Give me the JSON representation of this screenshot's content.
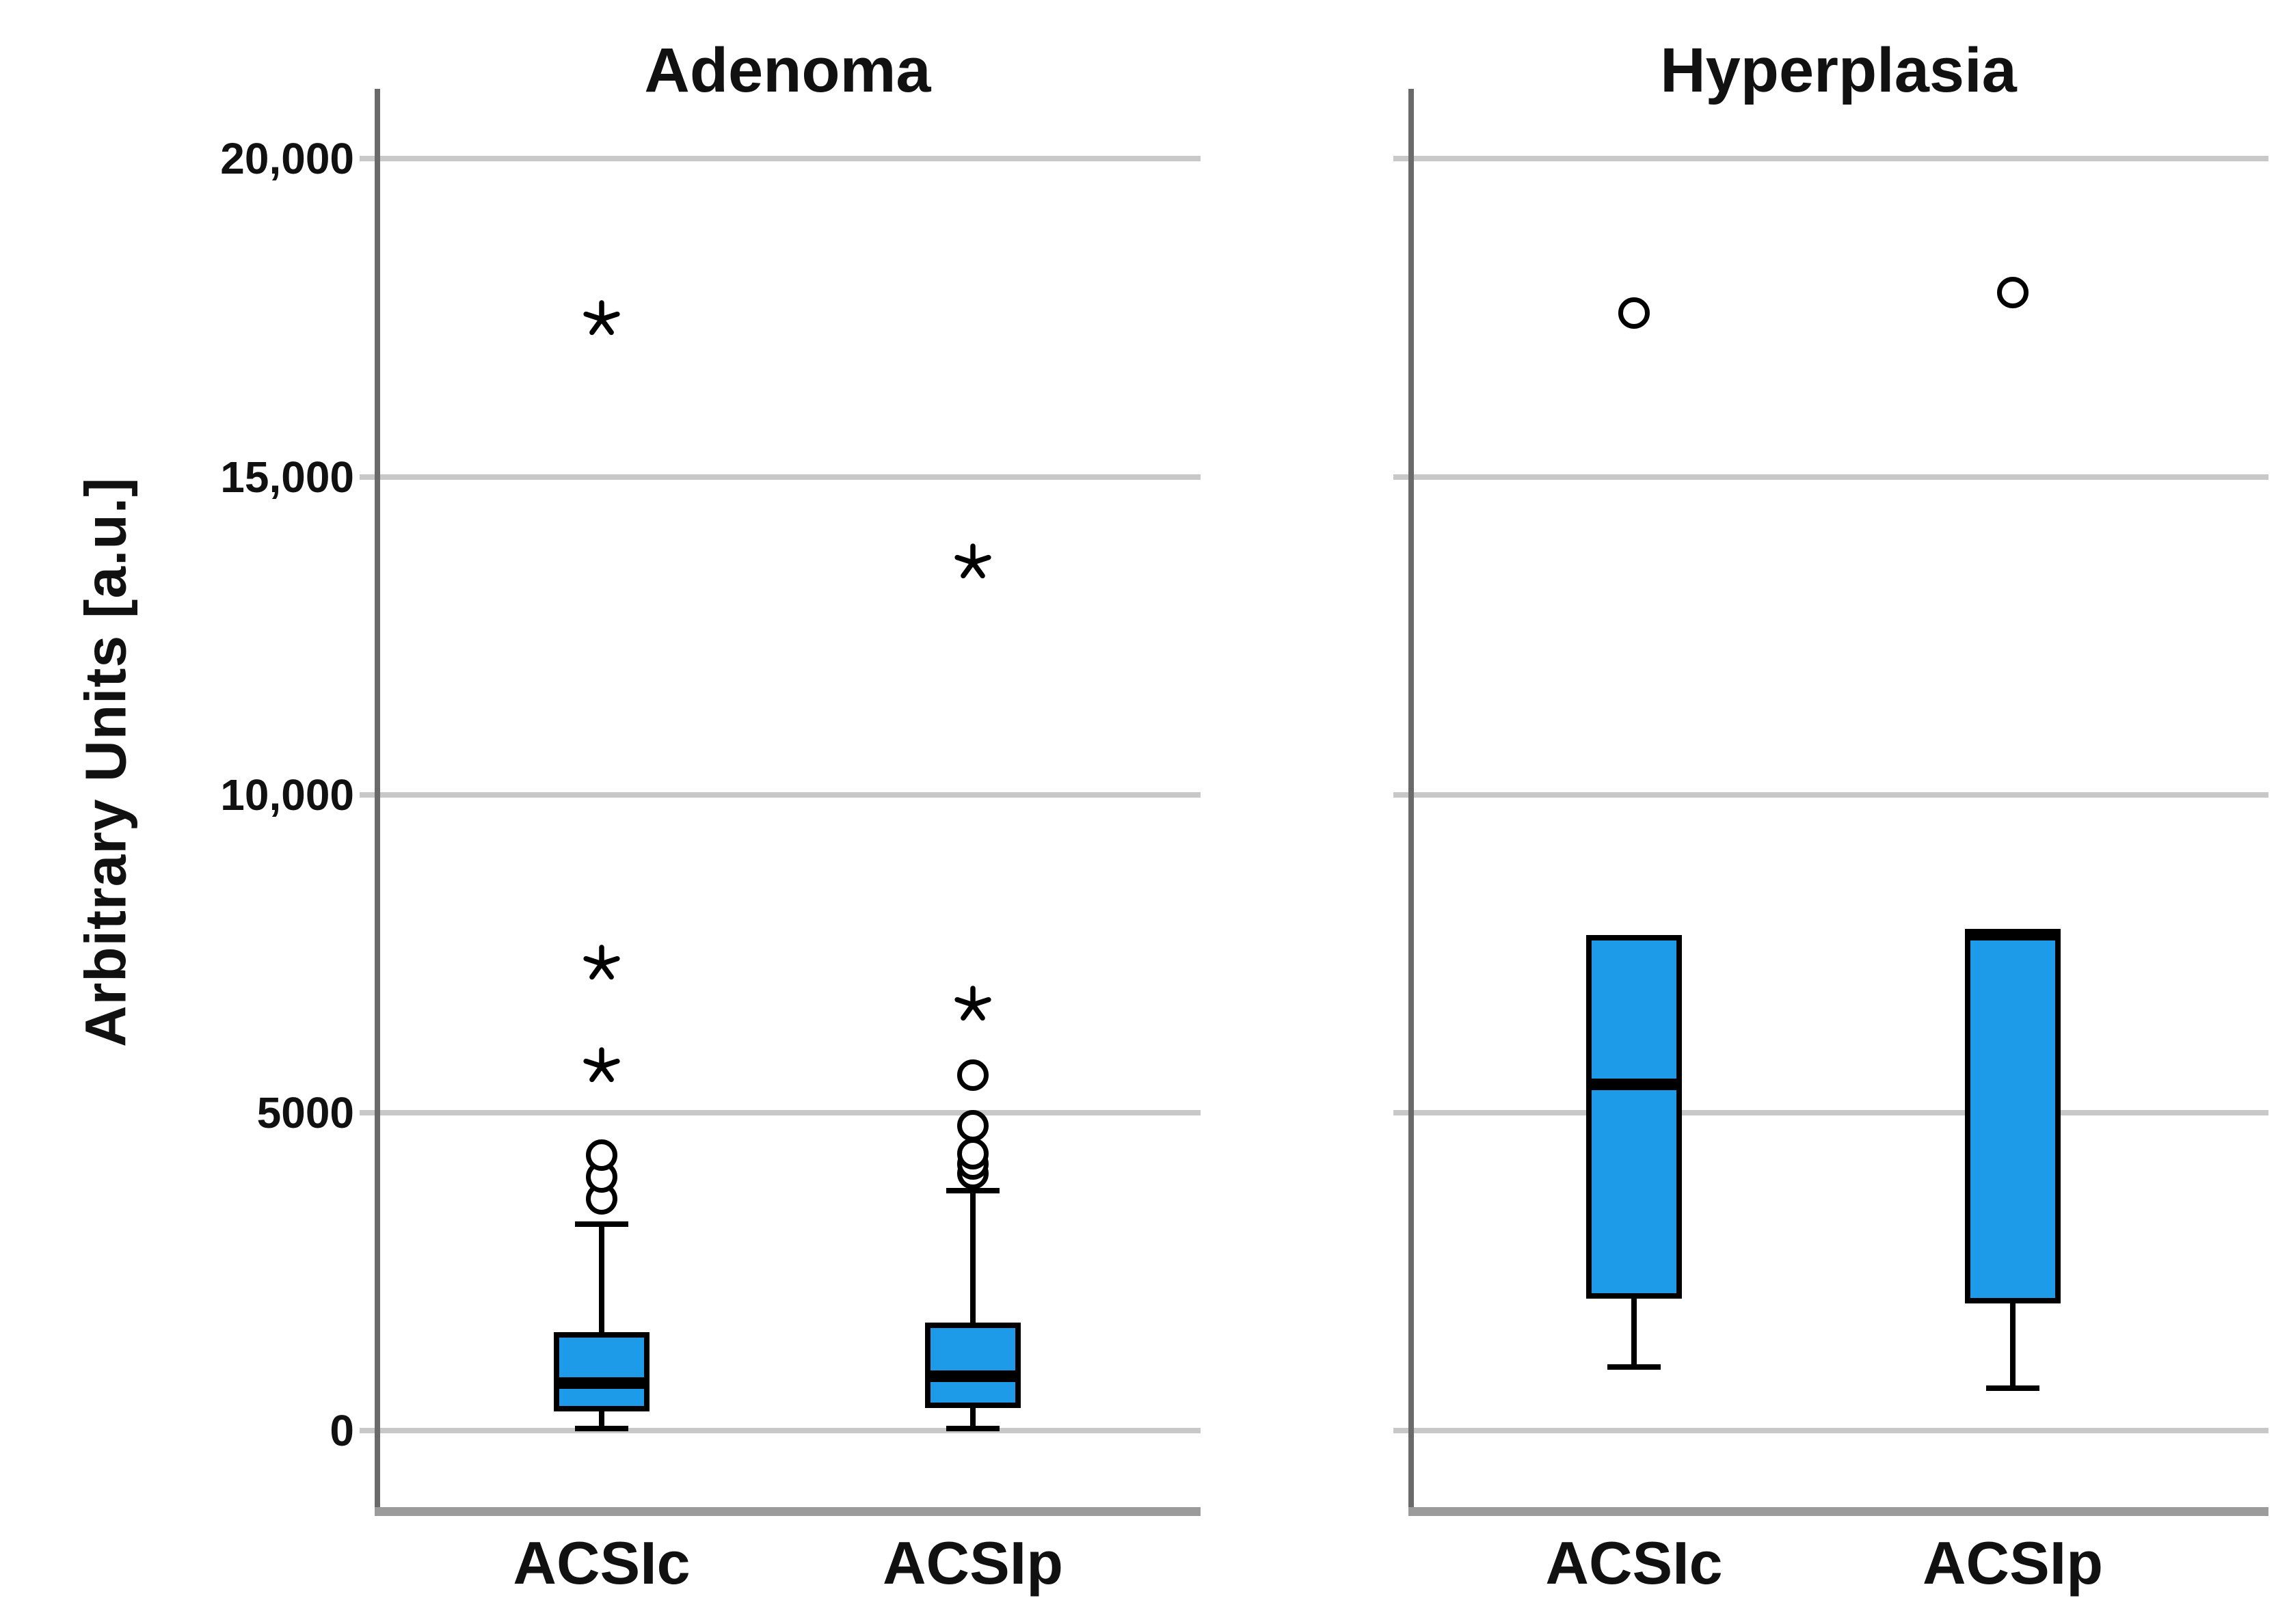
{
  "figure": {
    "background": "#ffffff",
    "y_axis_label": "Arbitrary Units [a.u.]"
  },
  "chart_data": {
    "type": "boxplot",
    "ylabel": "Arbitrary Units [a.u.]",
    "ylim": [
      -1200,
      21100
    ],
    "grid": true,
    "legend_position": "none",
    "marker_meaning": {
      "circle": "outlier",
      "star": "extreme value"
    },
    "y_ticks": [
      {
        "value": 0,
        "label": "0"
      },
      {
        "value": 5000,
        "label": "5000"
      },
      {
        "value": 10000,
        "label": "10,000"
      },
      {
        "value": 15000,
        "label": "15,000"
      },
      {
        "value": 20000,
        "label": "20,000"
      }
    ],
    "colors": {
      "box_fill": "#1D9AE8",
      "box_border": "#000000",
      "gridline": "#C8C8C8",
      "axis_line": "#6A6A6A",
      "baseline": "#9B9B9B",
      "text": "#111111"
    },
    "panels": [
      {
        "title": "Adenoma",
        "categories": [
          "ACSIc",
          "ACSIp"
        ],
        "boxes": [
          {
            "category": "ACSIc",
            "whisker_low": 40,
            "q1": 300,
            "median": 750,
            "q3": 1550,
            "whisker_high": 3250,
            "outliers_circles": [
              3650,
              3990,
              4330
            ],
            "outliers_stars": [
              5730,
              7340,
              17480
            ]
          },
          {
            "category": "ACSIp",
            "whisker_low": 40,
            "q1": 355,
            "median": 860,
            "q3": 1700,
            "whisker_high": 3780,
            "outliers_circles": [
              4040,
              4200,
              4360,
              4800,
              5590
            ],
            "outliers_stars": [
              6700,
              13650
            ]
          }
        ]
      },
      {
        "title": "Hyperplasia",
        "categories": [
          "ACSIc",
          "ACSIp"
        ],
        "boxes": [
          {
            "category": "ACSIc",
            "whisker_low": 1000,
            "q1": 2080,
            "median": 5450,
            "q3": 7800,
            "whisker_high": null,
            "outliers_circles": [
              17580
            ],
            "outliers_stars": []
          },
          {
            "category": "ACSIp",
            "whisker_low": 670,
            "q1": 2000,
            "median": 7800,
            "q3": 7870,
            "whisker_high": null,
            "outliers_circles": [
              17900
            ],
            "outliers_stars": []
          }
        ]
      }
    ]
  }
}
